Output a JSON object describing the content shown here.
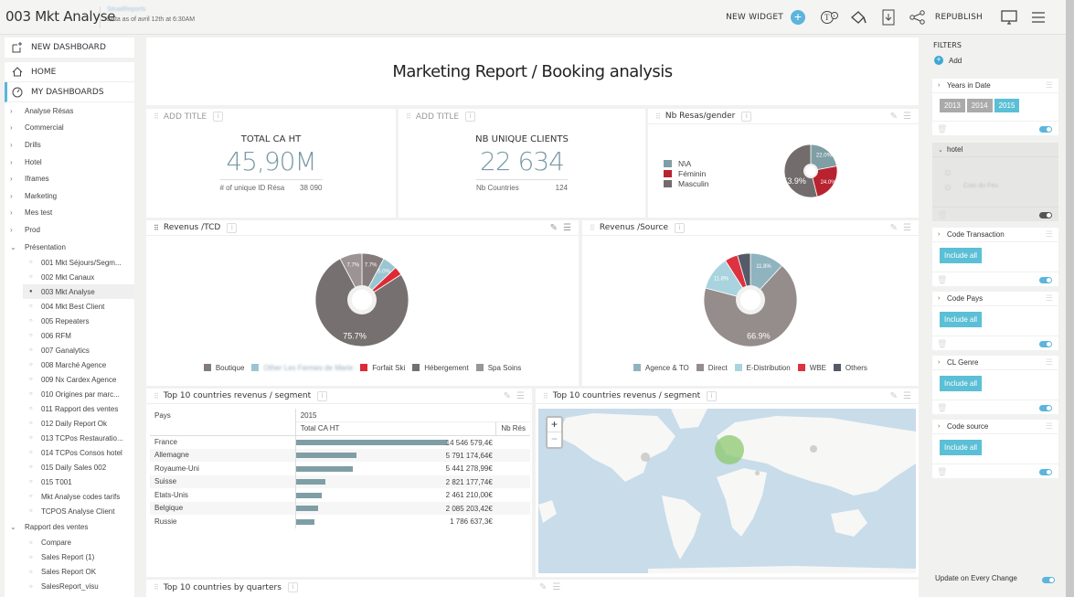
{
  "header": {
    "title": "003 Mkt Analyse",
    "org_name": "SituatReports",
    "data_as_of": "Data as of avril 12th at 6:30AM",
    "new_widget_label": "NEW WIDGET",
    "republish_label": "REPUBLISH",
    "icons": [
      "add-widget-icon",
      "text-widget-icon",
      "fill-icon",
      "download-icon",
      "share-icon",
      "screen-icon",
      "menu-icon"
    ]
  },
  "sidebar": {
    "new_dashboard": "NEW DASHBOARD",
    "home": "HOME",
    "my_dashboards": "MY DASHBOARDS",
    "folders": [
      {
        "label": "Analyse Résas",
        "expanded": false
      },
      {
        "label": "Commercial",
        "expanded": false
      },
      {
        "label": "Drills",
        "expanded": false
      },
      {
        "label": "Hotel",
        "expanded": false
      },
      {
        "label": "Iframes",
        "expanded": false
      },
      {
        "label": "Marketing",
        "expanded": false
      },
      {
        "label": "Mes test",
        "expanded": false
      },
      {
        "label": "Prod",
        "expanded": false
      }
    ],
    "presentation": {
      "label": "Présentation",
      "items": [
        "001 Mkt Séjours/Segm...",
        "002 Mkt Canaux",
        "003 Mkt Analyse",
        "004 Mkt Best Client",
        "005 Repeaters",
        "006 RFM",
        "007 Ganalytics",
        "008 Marché Agence",
        "009 Nx Cardex Agence",
        "010 Origines par marc...",
        "011 Rapport des ventes",
        "012 Daily Report Ok",
        "013 TCPos Restauratio...",
        "014 TCPos Consos hotel",
        "015 Daily Sales 002",
        "015 T001",
        "Mkt Analyse codes tarifs",
        "TCPOS Analyse Client"
      ],
      "current": "003 Mkt Analyse"
    },
    "rapport": {
      "label": "Rapport des ventes",
      "items": [
        "Compare",
        "Sales Report (1)",
        "Sales Report OK",
        "SalesReport_visu"
      ]
    }
  },
  "report_title": "Marketing Report / Booking analysis",
  "kpi1": {
    "head": "ADD TITLE",
    "label": "TOTAL CA HT",
    "value": "45,90M",
    "foot_label": "# of unique ID Résa",
    "foot_value": "38 090"
  },
  "kpi2": {
    "head": "ADD TITLE",
    "label": "NB UNIQUE CLIENTS",
    "value": "22 634",
    "foot_label": "Nb Countries",
    "foot_value": "124"
  },
  "gender": {
    "title": "Nb Resas/gender"
  },
  "tcd": {
    "title": "Revenus /TCD"
  },
  "source": {
    "title": "Revenus /Source"
  },
  "table_widget": {
    "title": "Top 10 countries revenus / segment",
    "col_pays": "Pays",
    "year": "2015",
    "col_total": "Total CA HT",
    "col_nb": "Nb Rés",
    "rows": [
      {
        "pays": "France",
        "value": "14 546 579,4€",
        "amount": 14546579.4
      },
      {
        "pays": "Allemagne",
        "value": "5 791 174,64€",
        "amount": 5791174.64
      },
      {
        "pays": "Royaume-Uni",
        "value": "5 441 278,99€",
        "amount": 5441278.99
      },
      {
        "pays": "Suisse",
        "value": "2 821 177,74€",
        "amount": 2821177.74
      },
      {
        "pays": "Etats-Unis",
        "value": "2 461 210,00€",
        "amount": 2461210.0
      },
      {
        "pays": "Belgique",
        "value": "2 085 203,42€",
        "amount": 2085203.42
      },
      {
        "pays": "Russie",
        "value": "1 786 637,3€",
        "amount": 1786637.3
      }
    ]
  },
  "map_widget": {
    "title": "Top 10 countries revenus / segment",
    "zoom_in": "+",
    "zoom_out": "−"
  },
  "bottom_widget": {
    "title": "Top 10 countries by quarters"
  },
  "filters": {
    "title": "FILTERS",
    "add": "Add",
    "years": {
      "label": "Years in Date",
      "options": [
        "2013",
        "2014",
        "2015"
      ],
      "selected": "2015",
      "enabled": true
    },
    "hotel": {
      "label": "hotel",
      "option": "Coin du Feu",
      "enabled": false
    },
    "code_transaction": {
      "label": "Code Transaction",
      "button": "Include all",
      "enabled": true
    },
    "code_pays": {
      "label": "Code Pays",
      "button": "Include all",
      "enabled": true
    },
    "cl_genre": {
      "label": "CL Genre",
      "button": "Include all",
      "enabled": true
    },
    "code_source": {
      "label": "Code source",
      "button": "Include all",
      "enabled": true
    },
    "update_label": "Update on Every Change",
    "update_enabled": true
  },
  "chart_data": [
    {
      "type": "pie",
      "title": "Nb Resas/gender",
      "categories": [
        "N\\A",
        "Féminin",
        "Masculin"
      ],
      "values": [
        22.0,
        24.0,
        53.9
      ],
      "labels": [
        "22.0%",
        "24.0%",
        "53.9%"
      ],
      "colors": [
        "#7f9ea5",
        "#b8232f",
        "#736c6c"
      ],
      "legend": "left"
    },
    {
      "type": "pie",
      "title": "Revenus /TCD",
      "categories": [
        "Boutique",
        "Other Les Fermes de Marie",
        "Forfait Ski",
        "Hébergement",
        "Spa Soins"
      ],
      "values": [
        7.7,
        5.0,
        3.0,
        75.7,
        7.7
      ],
      "labels": [
        "7.7%",
        "5.0%",
        "",
        "75.7%",
        "7.7%"
      ],
      "colors": [
        "#857b7b",
        "#9ac6d2",
        "#dd2a36",
        "#767070",
        "#9c9494"
      ],
      "legend": "bottom"
    },
    {
      "type": "pie",
      "title": "Revenus /Source",
      "categories": [
        "Agence & TO",
        "Direct",
        "E-Distribution",
        "WBE",
        "Others"
      ],
      "values": [
        11.8,
        66.9,
        11.8,
        4.5,
        4.5
      ],
      "labels": [
        "11.8%",
        "66.9%",
        "11.8%",
        "",
        ""
      ],
      "colors": [
        "#8fb4bf",
        "#958d8b",
        "#a9d4df",
        "#dd3340",
        "#555a68"
      ],
      "legend": "bottom"
    }
  ]
}
